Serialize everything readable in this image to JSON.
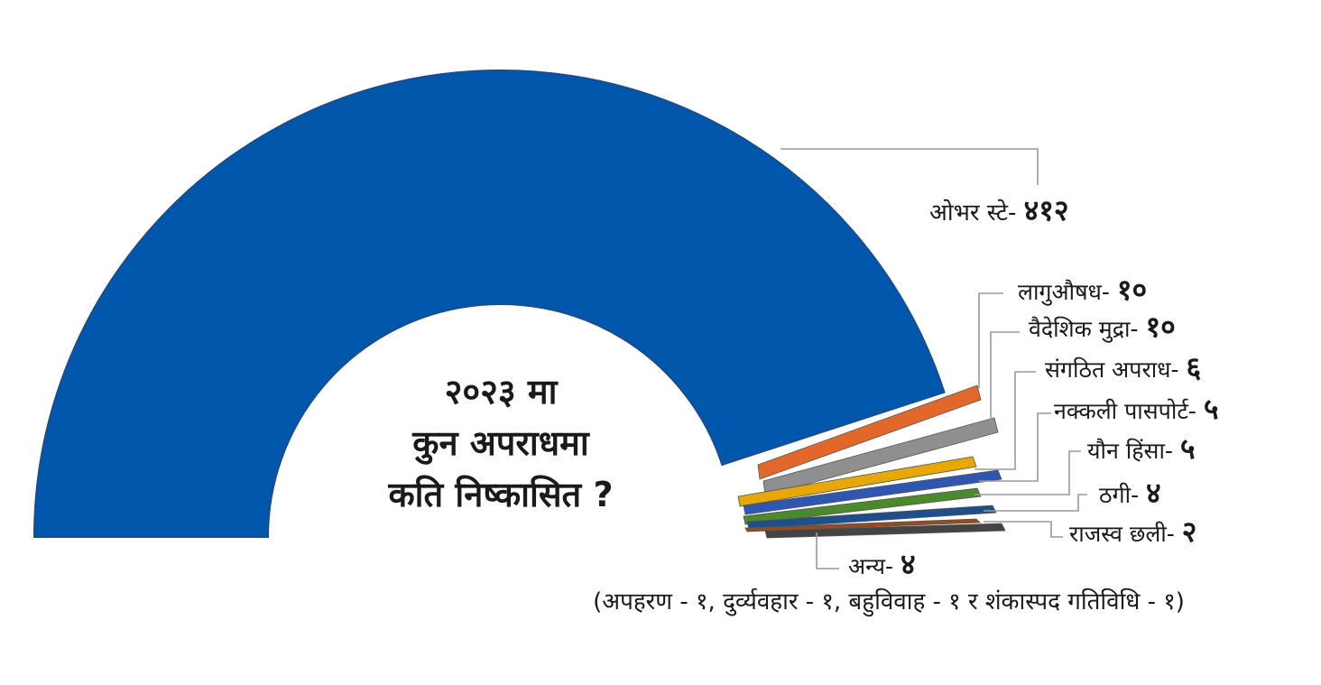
{
  "chart_data": {
    "type": "pie",
    "subtype": "half-donut",
    "title_lines": [
      "२०२३ मा",
      "कुन अपराधमा",
      "कति निष्कासित ?"
    ],
    "slices": [
      {
        "label": "ओभर स्टे",
        "value": 412,
        "value_text": "४१२",
        "color": "#0057ab"
      },
      {
        "label": "लागुऔषध",
        "value": 10,
        "value_text": "१०",
        "color": "#e2672a"
      },
      {
        "label": "वैदेशिक मुद्रा",
        "value": 10,
        "value_text": "१०",
        "color": "#8f8f8f"
      },
      {
        "label": "संगठित अपराध",
        "value": 6,
        "value_text": "६",
        "color": "#e6a707"
      },
      {
        "label": "नक्कली पासपोर्ट",
        "value": 5,
        "value_text": "५",
        "color": "#2f56b0"
      },
      {
        "label": "यौन हिंसा",
        "value": 5,
        "value_text": "५",
        "color": "#4a8a2c"
      },
      {
        "label": "ठगी",
        "value": 4,
        "value_text": "४",
        "color": "#1e4f8a"
      },
      {
        "label": "राजस्व छली",
        "value": 2,
        "value_text": "२",
        "color": "#9a4a1a"
      },
      {
        "label": "अन्य",
        "value": 4,
        "value_text": "४",
        "color": "#444444"
      }
    ],
    "note": "(अपहरण - १, दुर्व्यवहार - १, बहुविवाह - १ र शंकास्पद गतिविधि - १)",
    "legend": "leader-line labels, right side"
  }
}
